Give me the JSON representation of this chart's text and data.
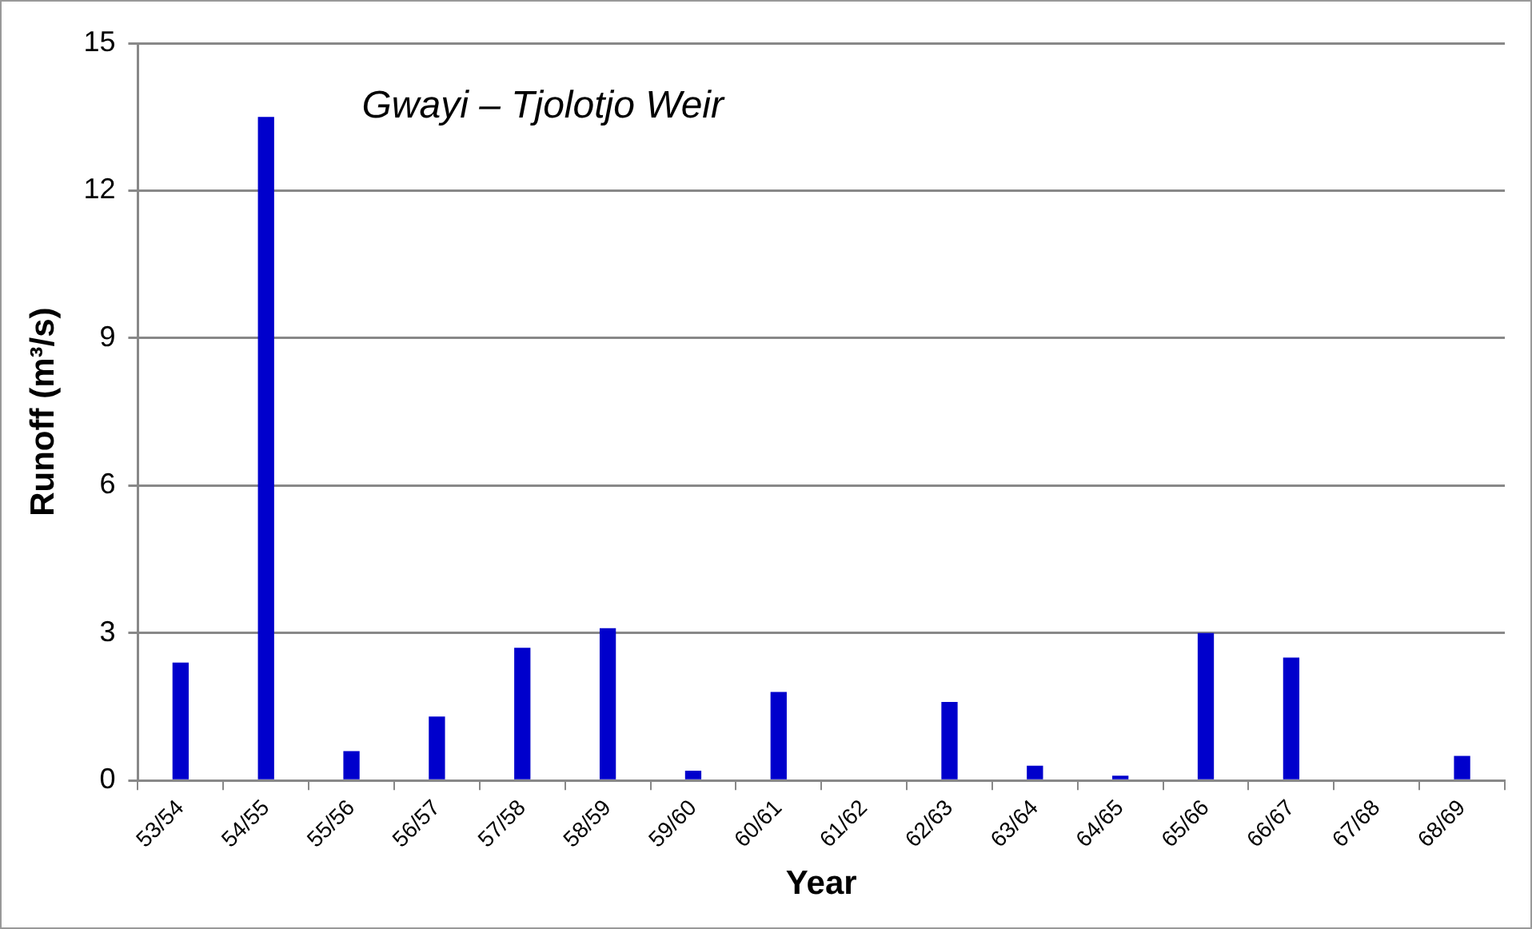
{
  "chart_data": {
    "type": "bar",
    "title": "Gwayi – Tjolotjo Weir",
    "xlabel": "Year",
    "ylabel": "Runoff (m³/s)",
    "categories": [
      "53/54",
      "54/55",
      "55/56",
      "56/57",
      "57/58",
      "58/59",
      "59/60",
      "60/61",
      "61/62",
      "62/63",
      "63/64",
      "64/65",
      "65/66",
      "66/67",
      "67/68",
      "68/69"
    ],
    "values": [
      2.4,
      13.5,
      0.6,
      1.3,
      2.7,
      3.1,
      0.2,
      1.8,
      0,
      1.6,
      0.3,
      0.1,
      3.0,
      2.5,
      0,
      0.5
    ],
    "color": "#0000cc",
    "ylim": [
      0,
      15
    ],
    "yticks": [
      0,
      3,
      6,
      9,
      12,
      15
    ],
    "grid": "y",
    "legend": false
  }
}
